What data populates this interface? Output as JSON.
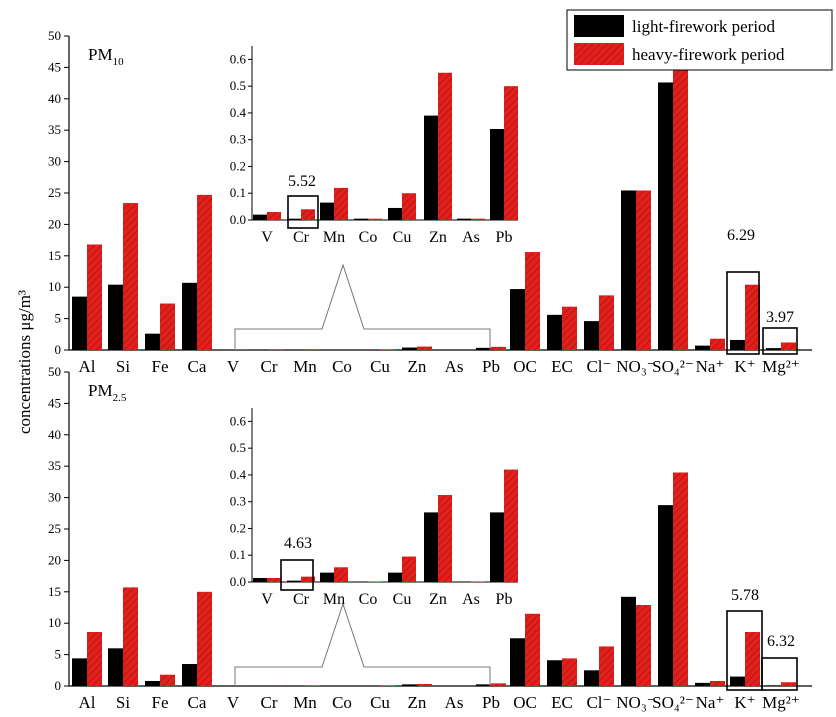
{
  "chart_data": {
    "type": "bar",
    "ylabel": "concentrations μg/m³",
    "legend": {
      "position": "top-right",
      "entries": [
        {
          "label": "light-firework period",
          "color": "#000000"
        },
        {
          "label": "heavy-firework period",
          "color": "#e0201c",
          "pattern": "diagonal-hatch"
        }
      ]
    },
    "categories": [
      "Al",
      "Si",
      "Fe",
      "Ca",
      "V",
      "Cr",
      "Mn",
      "Co",
      "Cu",
      "Zn",
      "As",
      "Pb",
      "OC",
      "EC",
      "Cl⁻",
      "NO₃⁻",
      "SO₄²⁻",
      "Na⁺",
      "K⁺",
      "Mg²⁺"
    ],
    "panels": [
      {
        "label": "PM10",
        "label_main": "PM",
        "label_sub": "10",
        "ylim": [
          0,
          50
        ],
        "yticks": [
          0,
          5,
          10,
          15,
          20,
          25,
          30,
          35,
          40,
          45,
          50
        ],
        "series": [
          {
            "name": "light-firework period",
            "values": [
              8.5,
              10.4,
              2.6,
              10.7,
              0.02,
              0.01,
              0.07,
              0.005,
              0.05,
              0.39,
              0.005,
              0.34,
              9.7,
              5.6,
              4.6,
              25.4,
              42.6,
              0.7,
              1.6,
              0.3
            ]
          },
          {
            "name": "heavy-firework period",
            "values": [
              16.8,
              23.4,
              7.4,
              24.7,
              0.03,
              0.04,
              0.12,
              0.005,
              0.1,
              0.55,
              0.005,
              0.5,
              15.6,
              6.9,
              8.7,
              25.4,
              45.0,
              1.8,
              10.4,
              1.2
            ]
          }
        ],
        "inset": {
          "categories": [
            "V",
            "Cr",
            "Mn",
            "Co",
            "Cu",
            "Zn",
            "As",
            "Pb"
          ],
          "ylim": [
            0,
            0.65
          ],
          "yticks": [
            "0.0",
            "0.1",
            "0.2",
            "0.3",
            "0.4",
            "0.5",
            "0.6"
          ],
          "light": [
            0.02,
            0.005,
            0.065,
            0.005,
            0.045,
            0.39,
            0.005,
            0.34
          ],
          "heavy": [
            0.03,
            0.04,
            0.12,
            0.005,
            0.1,
            0.55,
            0.005,
            0.5
          ]
        },
        "annotations": [
          {
            "text": "5.52",
            "target": "Cr"
          },
          {
            "text": "6.29",
            "target": "K⁺"
          },
          {
            "text": "3.97",
            "target": "Mg²⁺"
          }
        ]
      },
      {
        "label": "PM2.5",
        "label_main": "PM",
        "label_sub": "2.5",
        "ylim": [
          0,
          50
        ],
        "yticks": [
          0,
          5,
          10,
          15,
          20,
          25,
          30,
          35,
          40,
          45,
          50
        ],
        "series": [
          {
            "name": "light-firework period",
            "values": [
              4.4,
              6.0,
              0.8,
              3.5,
              0.015,
              0.005,
              0.035,
              0.002,
              0.035,
              0.26,
              0.002,
              0.26,
              7.6,
              4.1,
              2.5,
              14.2,
              28.8,
              0.5,
              1.5,
              0.1
            ]
          },
          {
            "name": "heavy-firework period",
            "values": [
              8.6,
              15.7,
              1.8,
              15.0,
              0.015,
              0.02,
              0.055,
              0.002,
              0.095,
              0.325,
              0.002,
              0.42,
              11.5,
              4.4,
              6.3,
              12.9,
              34.0,
              0.8,
              8.6,
              0.6
            ]
          }
        ],
        "inset": {
          "categories": [
            "V",
            "Cr",
            "Mn",
            "Co",
            "Cu",
            "Zn",
            "As",
            "Pb"
          ],
          "ylim": [
            0,
            0.65
          ],
          "yticks": [
            "0.0",
            "0.1",
            "0.2",
            "0.3",
            "0.4",
            "0.5",
            "0.6"
          ],
          "light": [
            0.015,
            0.005,
            0.035,
            0.002,
            0.035,
            0.26,
            0.002,
            0.26
          ],
          "heavy": [
            0.015,
            0.02,
            0.055,
            0.002,
            0.095,
            0.325,
            0.002,
            0.42
          ]
        },
        "annotations": [
          {
            "text": "4.63",
            "target": "Cr"
          },
          {
            "text": "5.78",
            "target": "K⁺"
          },
          {
            "text": "6.32",
            "target": "Mg²⁺"
          }
        ]
      }
    ]
  }
}
